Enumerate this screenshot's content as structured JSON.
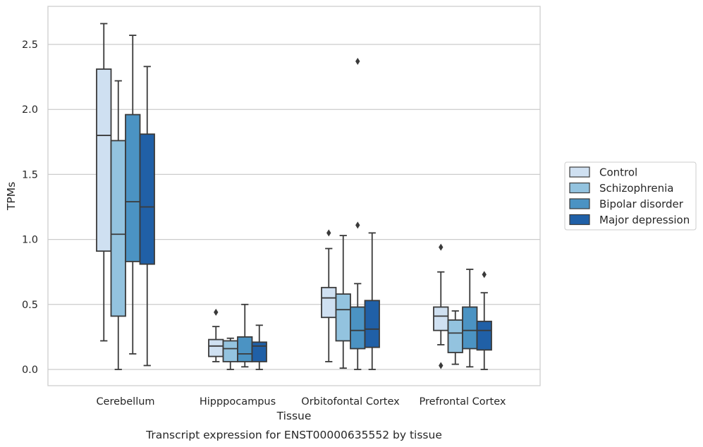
{
  "chart_data": {
    "type": "boxplot",
    "title": "",
    "caption": "Transcript expression for ENST00000635552 by tissue",
    "xlabel": "Tissue",
    "ylabel": "TPMs",
    "ylim": [
      -0.13,
      2.79
    ],
    "yticks": [
      0.0,
      0.5,
      1.0,
      1.5,
      2.0,
      2.5
    ],
    "ytick_labels": [
      "0.0",
      "0.5",
      "1.0",
      "1.5",
      "2.0",
      "2.5"
    ],
    "grid": "horizontal",
    "legend_placement": "right",
    "categories": [
      "Cerebellum",
      "Hipppocampus",
      "Orbitofontal Cortex",
      "Prefrontal Cortex"
    ],
    "series": [
      {
        "name": "Control",
        "color": "#cfe0f1",
        "boxes": [
          {
            "whislo": 0.22,
            "q1": 0.91,
            "med": 1.8,
            "q3": 2.31,
            "whishi": 2.66,
            "fliers": []
          },
          {
            "whislo": 0.06,
            "q1": 0.1,
            "med": 0.18,
            "q3": 0.23,
            "whishi": 0.33,
            "fliers": [
              0.44
            ]
          },
          {
            "whislo": 0.06,
            "q1": 0.4,
            "med": 0.55,
            "q3": 0.63,
            "whishi": 0.93,
            "fliers": [
              1.05
            ]
          },
          {
            "whislo": 0.19,
            "q1": 0.3,
            "med": 0.41,
            "q3": 0.48,
            "whishi": 0.75,
            "fliers": [
              0.03,
              0.94
            ]
          }
        ]
      },
      {
        "name": "Schizophrenia",
        "color": "#93c3df",
        "boxes": [
          {
            "whislo": 0.0,
            "q1": 0.41,
            "med": 1.04,
            "q3": 1.76,
            "whishi": 2.22,
            "fliers": []
          },
          {
            "whislo": 0.0,
            "q1": 0.06,
            "med": 0.16,
            "q3": 0.22,
            "whishi": 0.24,
            "fliers": []
          },
          {
            "whislo": 0.01,
            "q1": 0.22,
            "med": 0.46,
            "q3": 0.58,
            "whishi": 1.03,
            "fliers": []
          },
          {
            "whislo": 0.04,
            "q1": 0.13,
            "med": 0.28,
            "q3": 0.38,
            "whishi": 0.45,
            "fliers": []
          }
        ]
      },
      {
        "name": "Bipolar disorder",
        "color": "#4b93c3",
        "boxes": [
          {
            "whislo": 0.12,
            "q1": 0.83,
            "med": 1.29,
            "q3": 1.96,
            "whishi": 2.57,
            "fliers": []
          },
          {
            "whislo": 0.02,
            "q1": 0.06,
            "med": 0.12,
            "q3": 0.25,
            "whishi": 0.5,
            "fliers": []
          },
          {
            "whislo": 0.0,
            "q1": 0.16,
            "med": 0.3,
            "q3": 0.48,
            "whishi": 0.66,
            "fliers": [
              1.11,
              2.37
            ]
          },
          {
            "whislo": 0.02,
            "q1": 0.16,
            "med": 0.3,
            "q3": 0.48,
            "whishi": 0.77,
            "fliers": []
          }
        ]
      },
      {
        "name": "Major depression",
        "color": "#2060a7",
        "boxes": [
          {
            "whislo": 0.03,
            "q1": 0.81,
            "med": 1.25,
            "q3": 1.81,
            "whishi": 2.33,
            "fliers": []
          },
          {
            "whislo": 0.0,
            "q1": 0.06,
            "med": 0.18,
            "q3": 0.21,
            "whishi": 0.34,
            "fliers": []
          },
          {
            "whislo": 0.0,
            "q1": 0.17,
            "med": 0.31,
            "q3": 0.53,
            "whishi": 1.05,
            "fliers": []
          },
          {
            "whislo": 0.0,
            "q1": 0.15,
            "med": 0.3,
            "q3": 0.37,
            "whishi": 0.59,
            "fliers": [
              0.73
            ]
          }
        ]
      }
    ]
  }
}
